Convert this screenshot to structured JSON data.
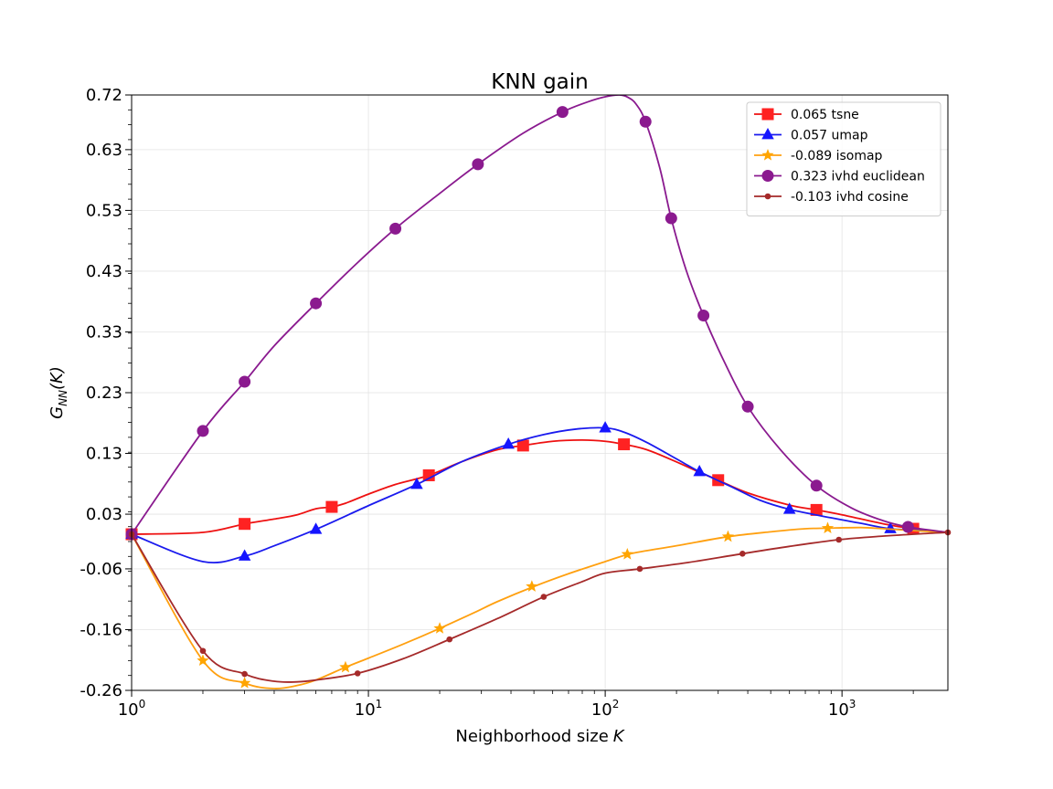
{
  "chart_data": {
    "type": "line",
    "title": "KNN gain",
    "xlabel": "Neighborhood size",
    "xlabel_var": "K",
    "ylabel": "G",
    "ylabel_sub": "NN",
    "ylabel_arg": "(K)",
    "xscale": "log",
    "xlim": [
      1,
      2800
    ],
    "ylim": [
      -0.26,
      0.72
    ],
    "grid": true,
    "legend_position": "top-right",
    "y_ticks": [
      0.72,
      0.63,
      0.53,
      0.43,
      0.33,
      0.23,
      0.13,
      0.03,
      -0.06,
      -0.16,
      -0.26
    ],
    "y_tick_labels": [
      "0.72",
      "0.63",
      "0.53",
      "0.43",
      "0.33",
      "0.23",
      "0.13",
      "0.03",
      "-0.06",
      "-0.16",
      "-0.26"
    ],
    "x_ticks": [
      {
        "value": 1,
        "base": "10",
        "exp": "0"
      },
      {
        "value": 10,
        "base": "10",
        "exp": "1"
      },
      {
        "value": 100,
        "base": "10",
        "exp": "2"
      },
      {
        "value": 1000,
        "base": "10",
        "exp": "3"
      }
    ],
    "series": [
      {
        "name": "0.065 tsne",
        "color": "#ee1111",
        "marker_color": "#ff2222",
        "marker": "square",
        "x": [
          1,
          2,
          3,
          4,
          5,
          6,
          7,
          8,
          10,
          13,
          18,
          25,
          35,
          45,
          60,
          80,
          100,
          120,
          150,
          200,
          250,
          300,
          400,
          600,
          780,
          1000,
          1500,
          2000,
          2800
        ],
        "y": [
          -0.003,
          0.0,
          0.014,
          0.022,
          0.029,
          0.039,
          0.042,
          0.048,
          0.063,
          0.079,
          0.094,
          0.117,
          0.136,
          0.143,
          0.15,
          0.152,
          0.15,
          0.145,
          0.136,
          0.116,
          0.099,
          0.086,
          0.065,
          0.045,
          0.037,
          0.029,
          0.014,
          0.006,
          0.0
        ],
        "markers_x": [
          1,
          3,
          7,
          18,
          45,
          120,
          300,
          780,
          2000
        ],
        "markers_y": [
          -0.003,
          0.014,
          0.042,
          0.094,
          0.143,
          0.145,
          0.086,
          0.037,
          0.006
        ]
      },
      {
        "name": "0.057 umap",
        "color": "#1a1aee",
        "marker_color": "#1515ff",
        "marker": "triangle",
        "x": [
          1,
          2,
          3,
          4,
          6,
          10,
          16,
          25,
          39,
          55,
          75,
          100,
          120,
          150,
          200,
          250,
          350,
          450,
          600,
          900,
          1200,
          1600,
          2000,
          2800
        ],
        "y": [
          -0.003,
          -0.048,
          -0.039,
          -0.022,
          0.005,
          0.044,
          0.079,
          0.117,
          0.145,
          0.161,
          0.17,
          0.172,
          0.165,
          0.148,
          0.121,
          0.1,
          0.073,
          0.053,
          0.038,
          0.024,
          0.015,
          0.006,
          0.004,
          0.0
        ],
        "markers_x": [
          1,
          3,
          6,
          16,
          39,
          100,
          250,
          600,
          1600
        ],
        "markers_y": [
          -0.003,
          -0.039,
          0.005,
          0.079,
          0.145,
          0.172,
          0.1,
          0.038,
          0.006
        ]
      },
      {
        "name": "-0.089 isomap",
        "color": "#ffa010",
        "marker_color": "#ffa500",
        "marker": "star",
        "x": [
          1,
          2,
          3,
          4,
          5,
          6,
          8,
          10,
          14,
          20,
          28,
          35,
          50,
          70,
          100,
          125,
          150,
          200,
          330,
          500,
          700,
          870,
          1200,
          1500,
          2000,
          2800
        ],
        "y": [
          -0.003,
          -0.211,
          -0.248,
          -0.257,
          -0.252,
          -0.243,
          -0.222,
          -0.207,
          -0.184,
          -0.158,
          -0.132,
          -0.114,
          -0.089,
          -0.068,
          -0.048,
          -0.036,
          -0.03,
          -0.022,
          -0.007,
          0.001,
          0.006,
          0.007,
          0.008,
          0.006,
          0.003,
          0.0
        ],
        "markers_x": [
          1,
          2,
          3,
          8,
          20,
          49,
          124,
          330,
          870
        ],
        "markers_y": [
          -0.003,
          -0.211,
          -0.248,
          -0.222,
          -0.158,
          -0.089,
          -0.036,
          -0.007,
          0.007
        ]
      },
      {
        "name": "0.323 ivhd euclidean",
        "color": "#8a1a8f",
        "marker_color": "#8b1a8f",
        "marker": "circle",
        "x": [
          1,
          2,
          3,
          4,
          6,
          9,
          13,
          20,
          29,
          45,
          66,
          85,
          100,
          115,
          125,
          135,
          148,
          170,
          190,
          220,
          260,
          320,
          400,
          550,
          780,
          1100,
          1500,
          1900,
          2800
        ],
        "y": [
          -0.003,
          0.167,
          0.248,
          0.307,
          0.377,
          0.444,
          0.5,
          0.558,
          0.606,
          0.657,
          0.692,
          0.709,
          0.717,
          0.72,
          0.716,
          0.705,
          0.676,
          0.6,
          0.517,
          0.431,
          0.357,
          0.279,
          0.207,
          0.136,
          0.077,
          0.04,
          0.019,
          0.009,
          0.0
        ],
        "markers_x": [
          1,
          2,
          3,
          6,
          13,
          29,
          66,
          148,
          190,
          260,
          400,
          780,
          1900
        ],
        "markers_y": [
          -0.003,
          0.167,
          0.248,
          0.377,
          0.5,
          0.606,
          0.692,
          0.676,
          0.517,
          0.357,
          0.207,
          0.077,
          0.009
        ]
      },
      {
        "name": "-0.103 ivhd cosine",
        "color": "#a52a2a",
        "marker_color": "#a52a2a",
        "marker": "small-circle",
        "x": [
          1,
          2,
          3,
          4,
          5,
          6,
          9,
          14,
          22,
          35,
          55,
          80,
          100,
          140,
          220,
          380,
          600,
          970,
          1500,
          2200,
          2800
        ],
        "y": [
          -0.003,
          -0.195,
          -0.233,
          -0.245,
          -0.246,
          -0.243,
          -0.232,
          -0.208,
          -0.176,
          -0.142,
          -0.106,
          -0.081,
          -0.067,
          -0.06,
          -0.05,
          -0.035,
          -0.023,
          -0.012,
          -0.006,
          -0.002,
          0.0
        ],
        "markers_x": [
          1,
          2,
          3,
          9,
          22,
          55,
          140,
          380,
          970,
          2800
        ],
        "markers_y": [
          -0.003,
          -0.195,
          -0.233,
          -0.232,
          -0.176,
          -0.106,
          -0.06,
          -0.035,
          -0.012,
          0.0
        ]
      }
    ]
  }
}
